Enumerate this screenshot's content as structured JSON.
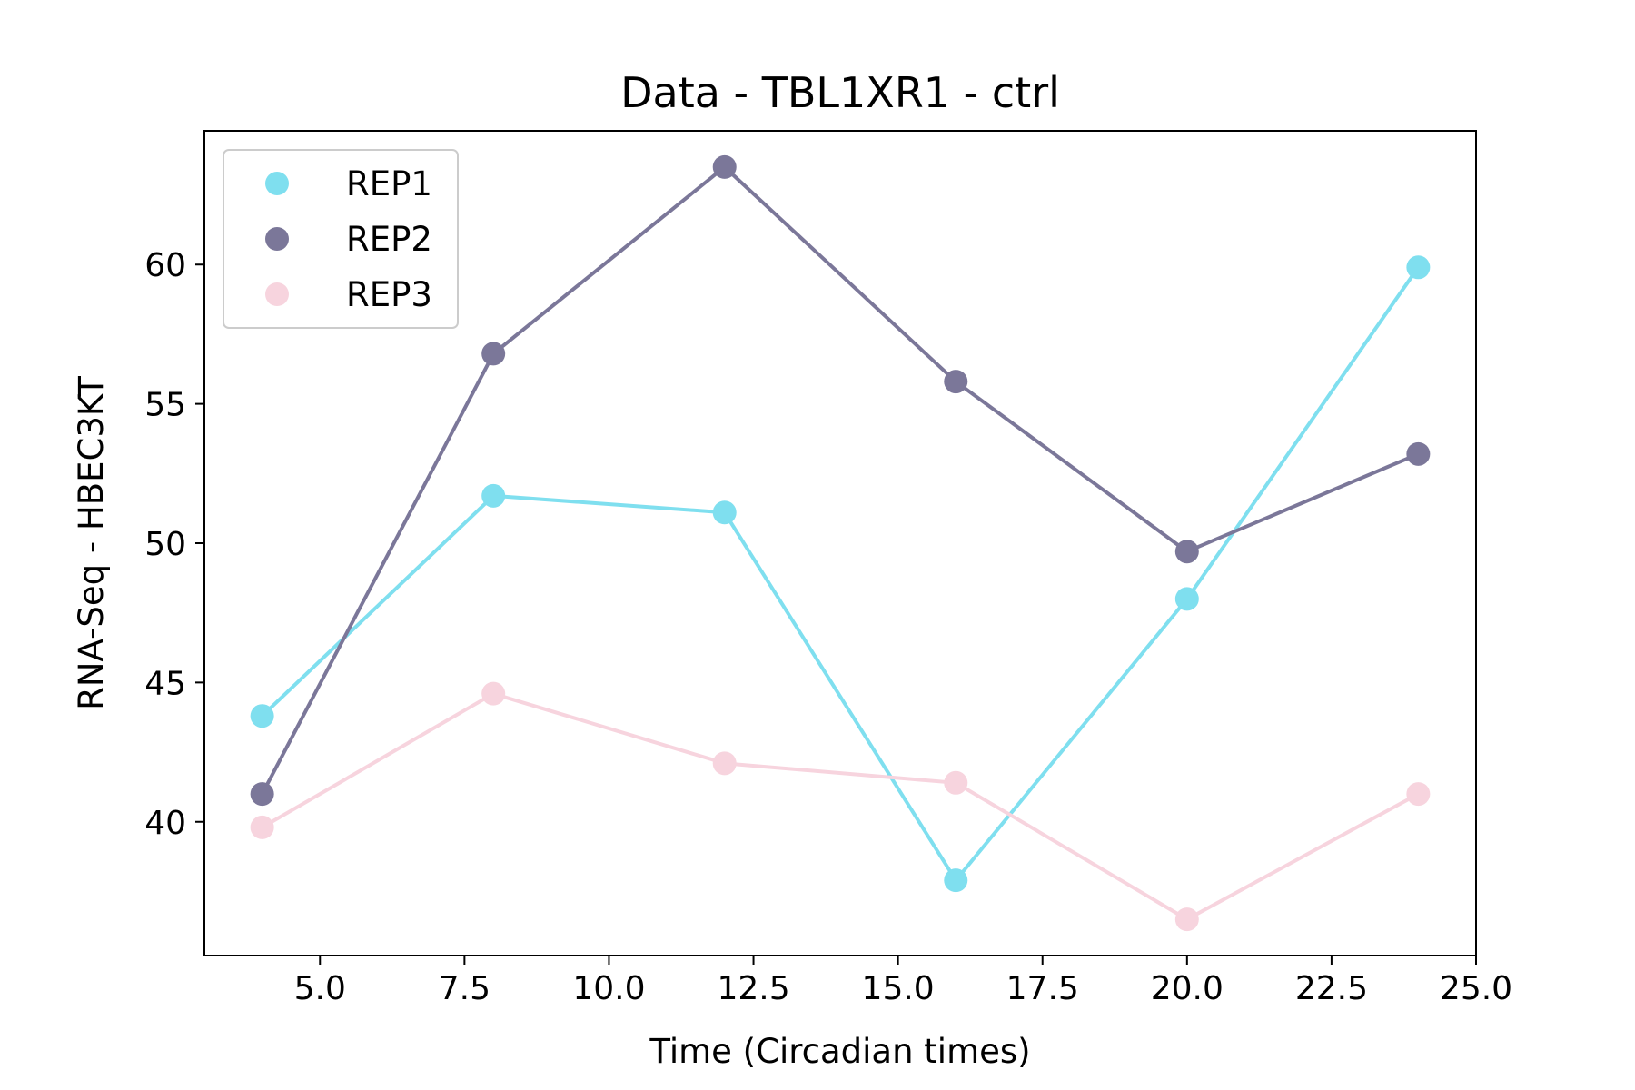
{
  "chart_data": {
    "type": "line",
    "title": "Data - TBL1XR1 - ctrl",
    "xlabel": "Time (Circadian times)",
    "ylabel": "RNA-Seq - HBEC3KT",
    "x": [
      4,
      8,
      12,
      16,
      20,
      24
    ],
    "xlim": [
      3,
      25
    ],
    "ylim": [
      35.2,
      64.8
    ],
    "xticks": [
      5.0,
      7.5,
      10.0,
      12.5,
      15.0,
      17.5,
      20.0,
      22.5,
      25.0
    ],
    "xtick_labels": [
      "5.0",
      "7.5",
      "10.0",
      "12.5",
      "15.0",
      "17.5",
      "20.0",
      "22.5",
      "25.0"
    ],
    "yticks": [
      40,
      45,
      50,
      55,
      60
    ],
    "ytick_labels": [
      "40",
      "45",
      "50",
      "55",
      "60"
    ],
    "grid": false,
    "legend_position": "top-left",
    "series": [
      {
        "name": "REP1",
        "color": "#7fdfef",
        "values": [
          43.8,
          51.7,
          51.1,
          37.9,
          48.0,
          59.9
        ]
      },
      {
        "name": "REP2",
        "color": "#7b7799",
        "values": [
          41.0,
          56.8,
          63.5,
          55.8,
          49.7,
          53.2
        ]
      },
      {
        "name": "REP3",
        "color": "#f7d4de",
        "values": [
          39.8,
          44.6,
          42.1,
          41.4,
          36.5,
          41.0
        ]
      }
    ]
  }
}
